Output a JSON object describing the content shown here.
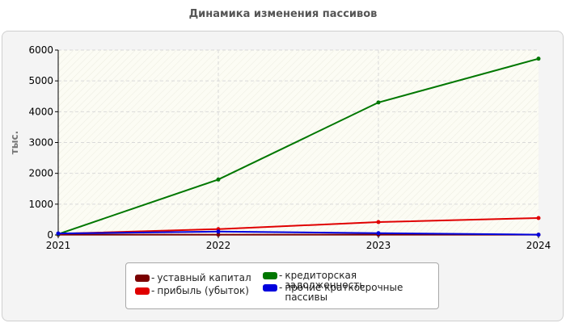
{
  "chart_data": {
    "type": "line",
    "title": "Динамика изменения пассивов",
    "xlabel": "",
    "ylabel": "тыс.",
    "categories": [
      "2021",
      "2022",
      "2023",
      "2024"
    ],
    "ylim": [
      0,
      6000
    ],
    "yticks": [
      "0",
      "1000",
      "2000",
      "3000",
      "4000",
      "5000",
      "6000"
    ],
    "grid": true,
    "legend_position": "bottom",
    "series": [
      {
        "name": "уставный капитал",
        "color": "#7a0000",
        "values": [
          10,
          10,
          10,
          10
        ]
      },
      {
        "name": "прибыль (убыток)",
        "color": "#e00000",
        "values": [
          40,
          190,
          420,
          550
        ]
      },
      {
        "name": "кредиторская задолженность",
        "color": "#007700",
        "values": [
          30,
          1800,
          4300,
          5720
        ]
      },
      {
        "name": "прочие краткосрочные пассивы",
        "color": "#0000dd",
        "values": [
          50,
          110,
          60,
          10
        ]
      }
    ]
  }
}
